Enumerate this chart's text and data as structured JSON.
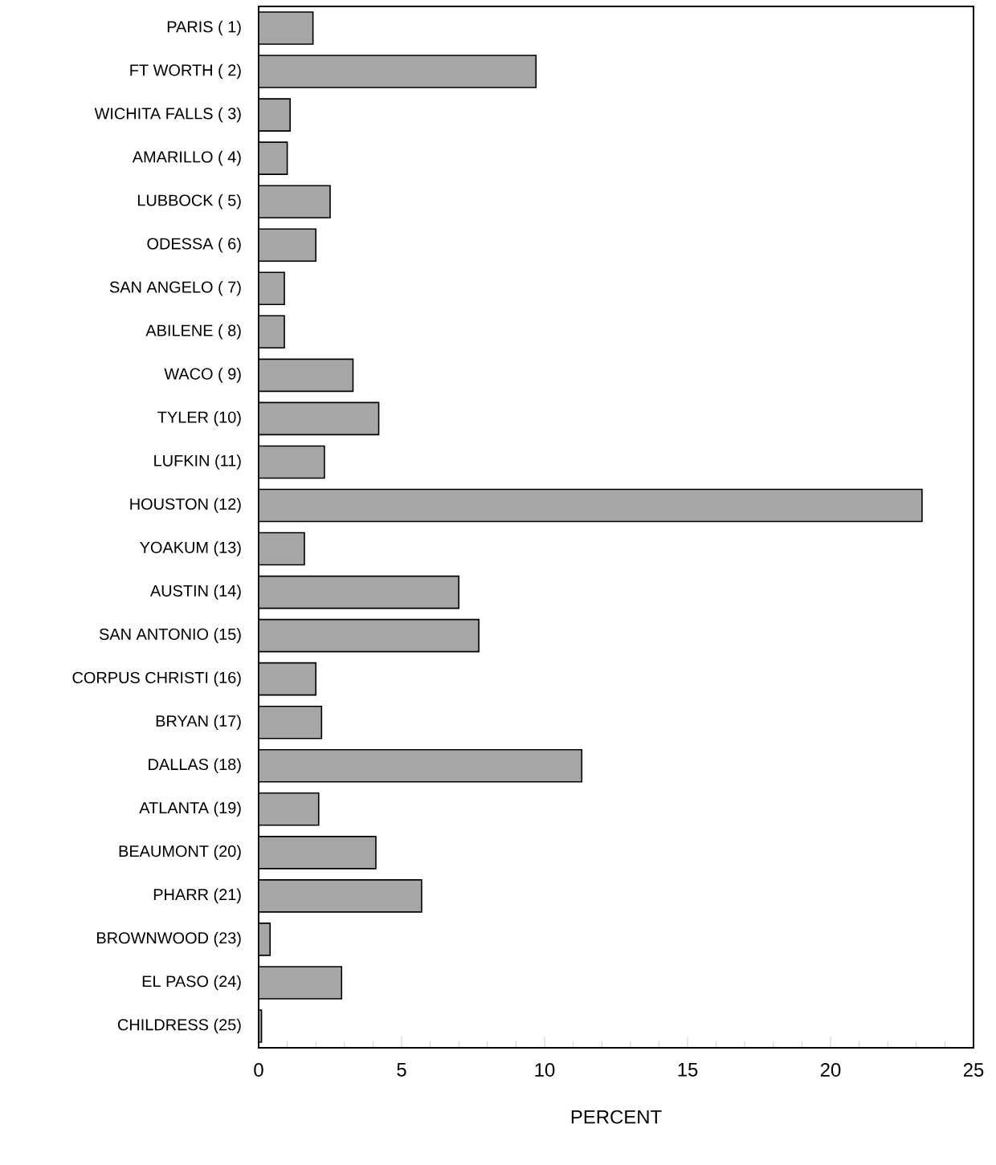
{
  "chart_data": {
    "type": "bar",
    "orientation": "horizontal",
    "xlabel": "PERCENT",
    "categories": [
      "PARIS ( 1)",
      "FT WORTH ( 2)",
      "WICHITA FALLS ( 3)",
      "AMARILLO ( 4)",
      "LUBBOCK ( 5)",
      "ODESSA ( 6)",
      "SAN ANGELO ( 7)",
      "ABILENE ( 8)",
      "WACO ( 9)",
      "TYLER (10)",
      "LUFKIN (11)",
      "HOUSTON (12)",
      "YOAKUM (13)",
      "AUSTIN (14)",
      "SAN ANTONIO (15)",
      "CORPUS CHRISTI (16)",
      "BRYAN (17)",
      "DALLAS (18)",
      "ATLANTA (19)",
      "BEAUMONT (20)",
      "PHARR (21)",
      "BROWNWOOD (23)",
      "EL PASO (24)",
      "CHILDRESS (25)"
    ],
    "values": [
      1.9,
      9.7,
      1.1,
      1.0,
      2.5,
      2.0,
      0.9,
      0.9,
      3.3,
      4.2,
      2.3,
      23.2,
      1.6,
      7.0,
      7.7,
      2.0,
      2.2,
      11.3,
      2.1,
      4.1,
      5.7,
      0.4,
      2.9,
      0.1
    ],
    "color": "#a6a6a6",
    "xlim": [
      0,
      25
    ],
    "xticks": [
      0,
      5,
      10,
      15,
      20,
      25
    ]
  }
}
